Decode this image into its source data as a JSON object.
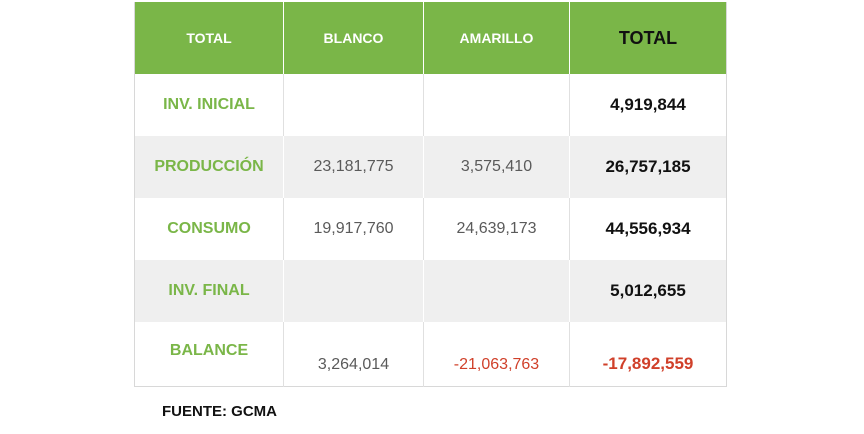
{
  "table": {
    "headers": [
      "TOTAL",
      "BLANCO",
      "AMARILLO",
      "TOTAL"
    ],
    "rows": [
      {
        "label": "INV. INICIAL",
        "blanco": "",
        "amarillo": "",
        "total": "4,919,844"
      },
      {
        "label": "PRODUCCIÓN",
        "blanco": "23,181,775",
        "amarillo": "3,575,410",
        "total": "26,757,185"
      },
      {
        "label": "CONSUMO",
        "blanco": "19,917,760",
        "amarillo": "24,639,173",
        "total": "44,556,934"
      },
      {
        "label": "INV. FINAL",
        "blanco": "",
        "amarillo": "",
        "total": "5,012,655"
      },
      {
        "label": "BALANCE",
        "blanco": "3,264,014",
        "amarillo": "-21,063,763",
        "total": "-17,892,559"
      }
    ]
  },
  "source": "FUENTE: GCMA",
  "colors": {
    "header_green": "#7ab648",
    "label_green": "#7ab648",
    "negative_red": "#d0402a",
    "stripe_gray": "#efefef"
  }
}
